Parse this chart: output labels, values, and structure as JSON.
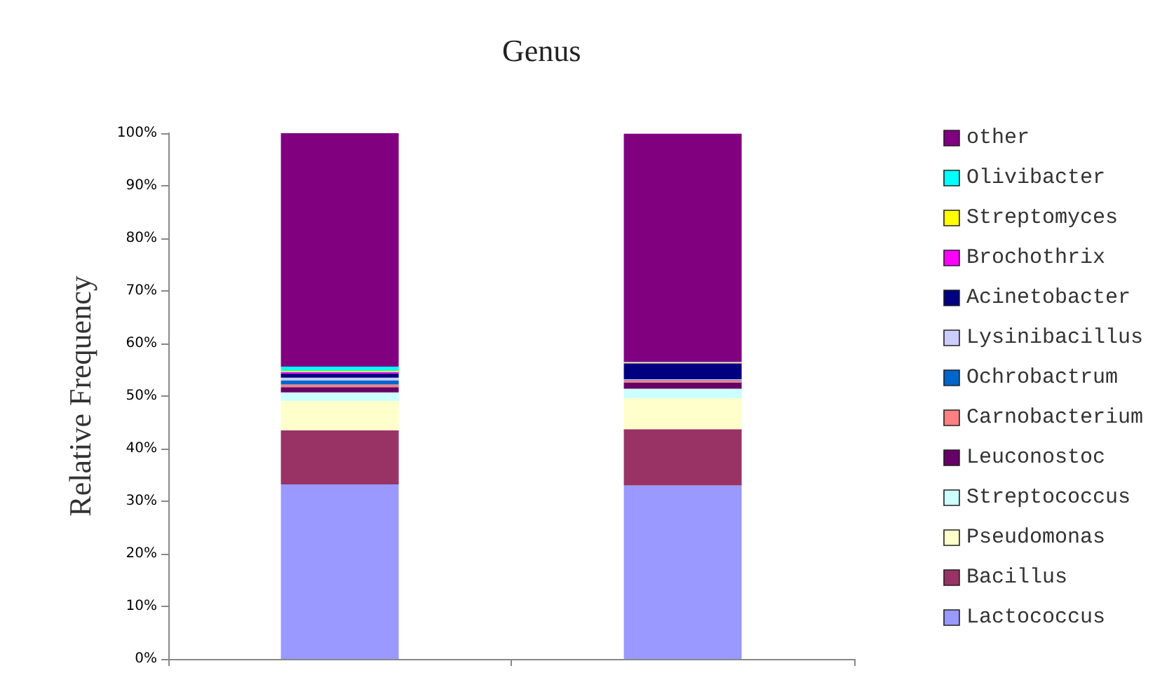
{
  "chart_data": {
    "type": "bar",
    "title": "Genus",
    "ylabel": "Relative Frequency",
    "categories": [
      null,
      null
    ],
    "stacked": true,
    "ylim": [
      0,
      100
    ],
    "yticks": [
      {
        "value": 0,
        "label": "0%"
      },
      {
        "value": 10,
        "label": "10%"
      },
      {
        "value": 20,
        "label": "20%"
      },
      {
        "value": 30,
        "label": "30%"
      },
      {
        "value": 40,
        "label": "40%"
      },
      {
        "value": 50,
        "label": "50%"
      },
      {
        "value": 60,
        "label": "60%"
      },
      {
        "value": 70,
        "label": "70%"
      },
      {
        "value": 80,
        "label": "80%"
      },
      {
        "value": 90,
        "label": "90%"
      },
      {
        "value": 100,
        "label": "100%"
      }
    ],
    "grid": false,
    "legend": "right",
    "series": [
      {
        "name": "Lactococcus",
        "color": "#9999ff",
        "values": [
          33.2,
          33.0
        ]
      },
      {
        "name": "Bacillus",
        "color": "#993366",
        "values": [
          10.3,
          10.7
        ]
      },
      {
        "name": "Pseudomonas",
        "color": "#ffffcc",
        "values": [
          5.6,
          5.9
        ]
      },
      {
        "name": "Streptococcus",
        "color": "#ccffff",
        "values": [
          1.6,
          1.8
        ]
      },
      {
        "name": "Leuconostoc",
        "color": "#660066",
        "values": [
          1.0,
          1.2
        ]
      },
      {
        "name": "Carnobacterium",
        "color": "#ff8080",
        "values": [
          0.5,
          0.4
        ]
      },
      {
        "name": "Ochrobactrum",
        "color": "#0066cc",
        "values": [
          0.8,
          0.1
        ]
      },
      {
        "name": "Lysinibacillus",
        "color": "#ccccff",
        "values": [
          0.5,
          0.1
        ]
      },
      {
        "name": "Acinetobacter",
        "color": "#000080",
        "values": [
          0.8,
          3.0
        ]
      },
      {
        "name": "Brochothrix",
        "color": "#ff00ff",
        "values": [
          0.3,
          0.1
        ]
      },
      {
        "name": "Streptomyces",
        "color": "#ffff00",
        "values": [
          0.2,
          0.1
        ]
      },
      {
        "name": "Olivibacter",
        "color": "#00ffff",
        "values": [
          0.8,
          0.1
        ]
      },
      {
        "name": "other",
        "color": "#800080",
        "values": [
          44.4,
          43.4
        ]
      }
    ]
  }
}
